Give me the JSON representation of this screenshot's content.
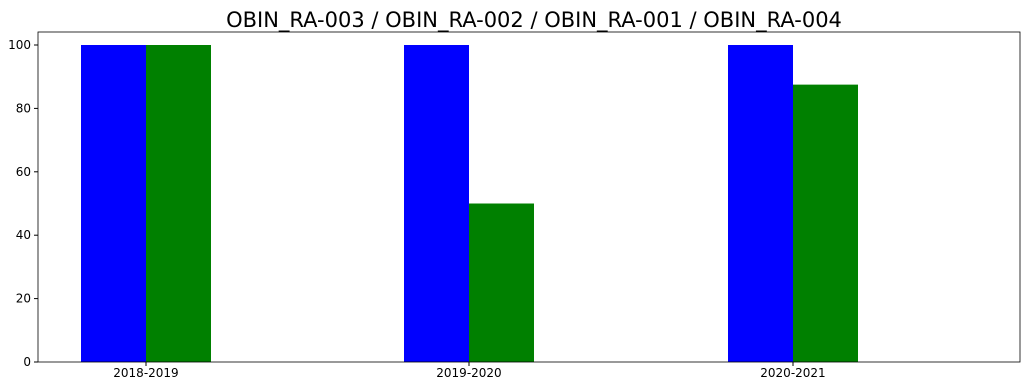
{
  "chart_data": {
    "type": "bar",
    "title": "OBIN_RA-003 / OBIN_RA-002 / OBIN_RA-001 / OBIN_RA-004",
    "xlabel": "",
    "ylabel": "",
    "categories": [
      "2018-2019",
      "2019-2020",
      "2020-2021"
    ],
    "series": [
      {
        "values": [
          100,
          100,
          100
        ],
        "color": "#0000ff"
      },
      {
        "values": [
          100,
          50,
          87.5
        ],
        "color": "#008000"
      }
    ],
    "ylim": [
      0,
      100
    ],
    "yticks": [
      0,
      20,
      40,
      60,
      80,
      100
    ],
    "grid": false,
    "legend": "none"
  }
}
